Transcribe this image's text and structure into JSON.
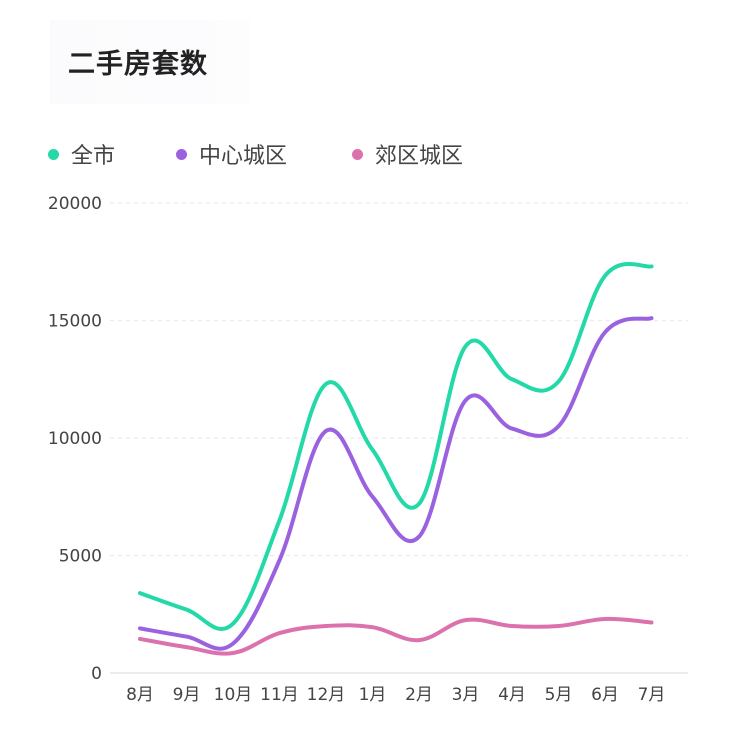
{
  "title": "二手房套数",
  "chart_data": {
    "type": "line",
    "categories": [
      "8月",
      "9月",
      "10月",
      "11月",
      "12月",
      "1月",
      "2月",
      "3月",
      "4月",
      "5月",
      "6月",
      "7月"
    ],
    "ylim": [
      0,
      20000
    ],
    "yticks": [
      "0",
      "5000",
      "10000",
      "15000",
      "20000"
    ],
    "grid": true,
    "legend_position": "top-left",
    "series": [
      {
        "name": "全市",
        "color": "#23d9a7",
        "values": [
          3400,
          2700,
          2100,
          6500,
          12300,
          9500,
          7200,
          13900,
          12500,
          12400,
          16900,
          17300
        ]
      },
      {
        "name": "中心城区",
        "color": "#9b62e0",
        "values": [
          1900,
          1550,
          1250,
          4800,
          10300,
          7500,
          5800,
          11600,
          10400,
          10500,
          14500,
          15100
        ]
      },
      {
        "name": "郊区城区",
        "color": "#dc72ad",
        "values": [
          1450,
          1100,
          850,
          1700,
          2000,
          1950,
          1400,
          2250,
          2000,
          2000,
          2300,
          2150
        ]
      }
    ]
  }
}
